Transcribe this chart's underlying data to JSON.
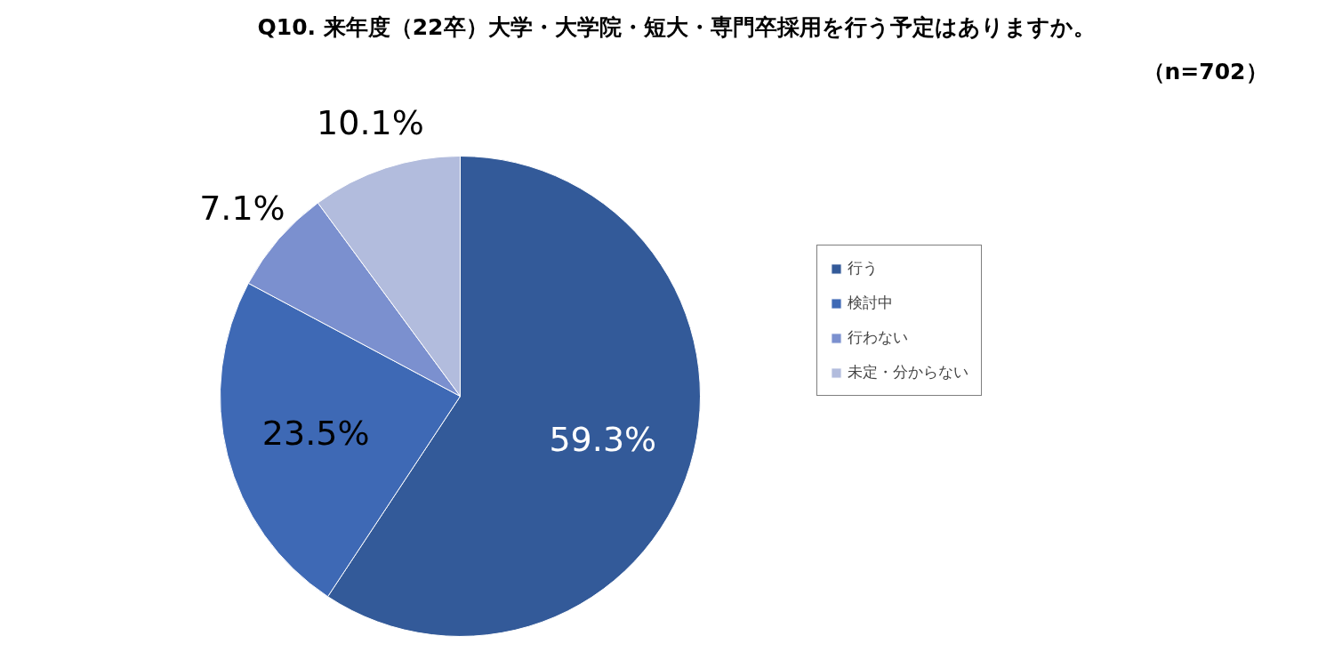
{
  "chart_data": {
    "type": "pie",
    "title": "Q10. 来年度（22卒）大学・大学院・短大・専門卒採用を行う予定はありますか。",
    "subtitle": "（n=702）",
    "categories": [
      "行う",
      "検討中",
      "行わない",
      "未定・分からない"
    ],
    "values": [
      59.3,
      23.5,
      7.1,
      10.1
    ],
    "colors": [
      "#335a99",
      "#3e69b5",
      "#7b90cf",
      "#b2bcdd"
    ],
    "value_labels": [
      "59.3%",
      "23.5%",
      "7.1%",
      "10.1%"
    ],
    "legend": "right"
  }
}
